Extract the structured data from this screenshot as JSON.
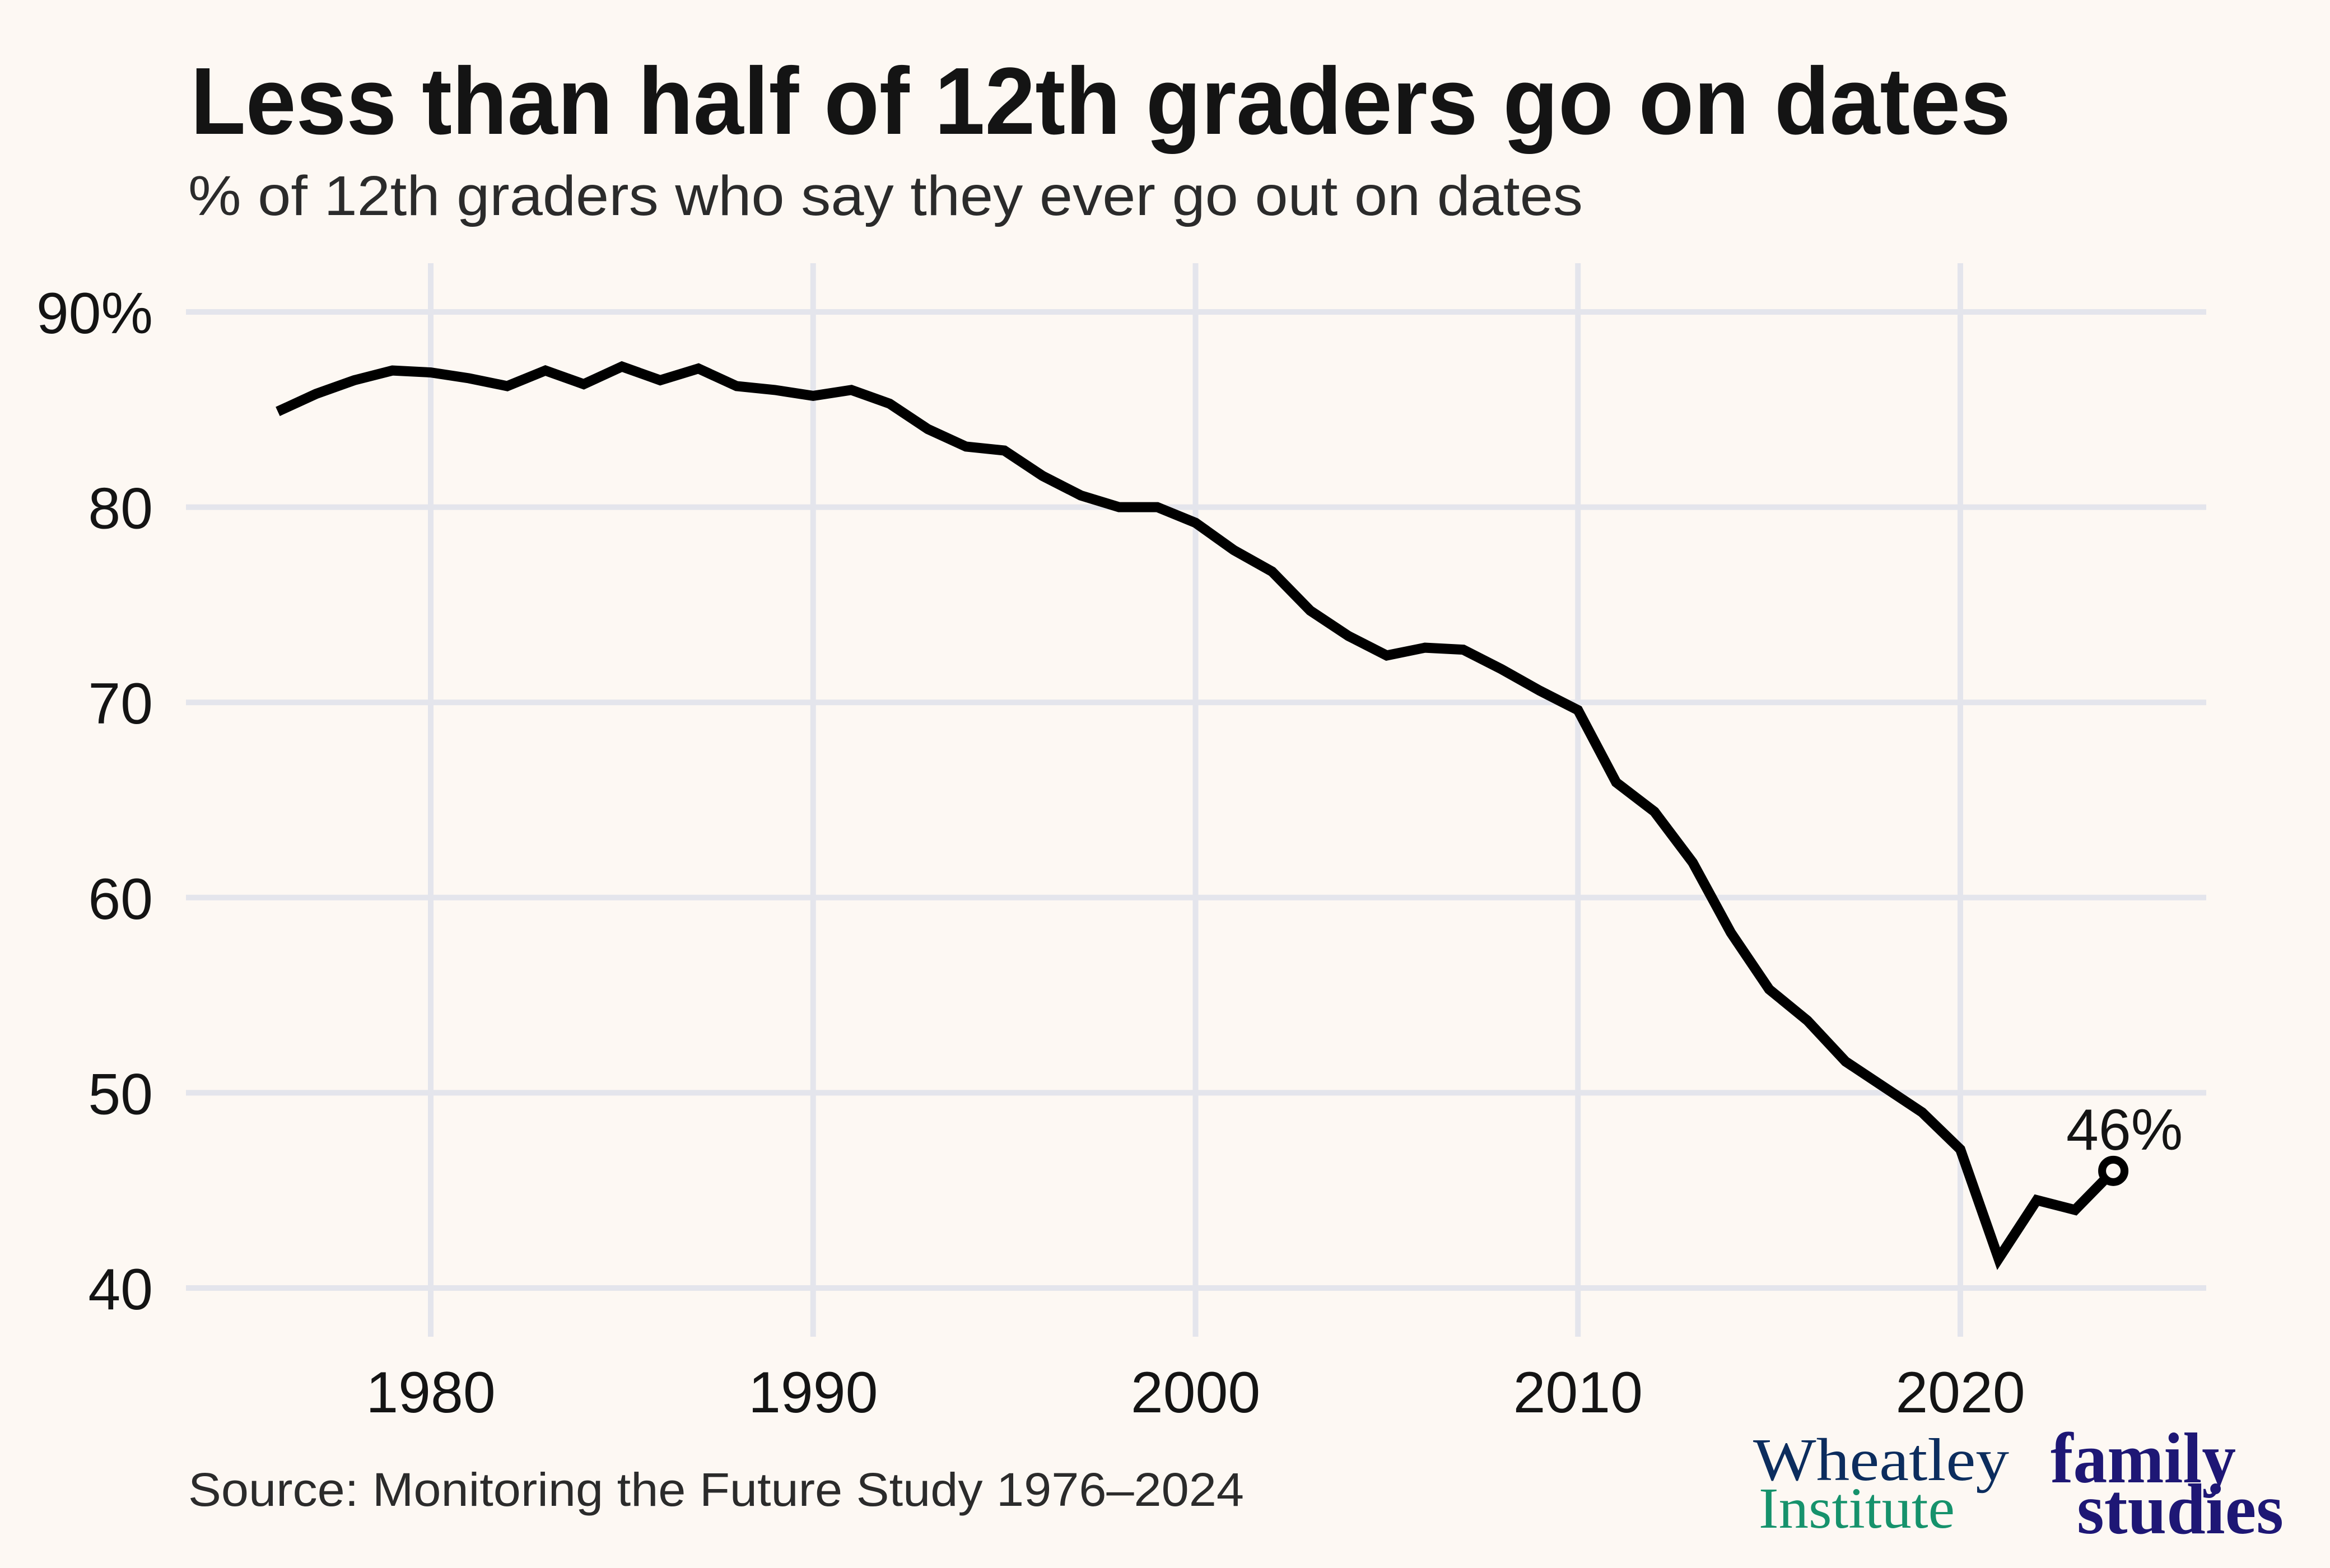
{
  "chart_data": {
    "type": "line",
    "title": "Less than half of 12th graders go on dates",
    "subtitle": "% of 12th graders who say they ever go out on dates",
    "xlabel": "",
    "ylabel": "",
    "xlim": [
      1976,
      2024
    ],
    "ylim": [
      40,
      90
    ],
    "grid": true,
    "x_ticks": [
      1980,
      1990,
      2000,
      2010,
      2020
    ],
    "x_tick_labels": [
      "1980",
      "1990",
      "2000",
      "2010",
      "2020"
    ],
    "y_ticks": [
      40,
      50,
      60,
      70,
      80,
      90
    ],
    "y_tick_labels": [
      "40",
      "50",
      "60",
      "70",
      "80",
      "90%"
    ],
    "series": [
      {
        "name": "Ever go out on dates",
        "color": "#000000",
        "x": [
          1976,
          1977,
          1978,
          1979,
          1980,
          1981,
          1982,
          1983,
          1984,
          1985,
          1986,
          1987,
          1988,
          1989,
          1990,
          1991,
          1992,
          1993,
          1994,
          1995,
          1996,
          1997,
          1998,
          1999,
          2000,
          2001,
          2002,
          2003,
          2004,
          2005,
          2006,
          2007,
          2008,
          2009,
          2010,
          2011,
          2012,
          2013,
          2014,
          2015,
          2016,
          2017,
          2018,
          2019,
          2020,
          2021,
          2022,
          2023,
          2024
        ],
        "values": [
          84.9,
          85.8,
          86.5,
          87.0,
          86.9,
          86.6,
          86.2,
          87.0,
          86.3,
          87.2,
          86.5,
          87.1,
          86.2,
          86.0,
          85.7,
          86.0,
          85.3,
          84.0,
          83.1,
          82.9,
          81.6,
          80.6,
          80.0,
          80.0,
          79.2,
          77.8,
          76.7,
          74.7,
          73.4,
          72.4,
          72.8,
          72.7,
          71.7,
          70.6,
          69.6,
          65.9,
          64.4,
          61.8,
          58.2,
          55.3,
          53.7,
          51.6,
          50.3,
          49.0,
          47.1,
          41.5,
          44.5,
          44.0,
          46.0
        ]
      }
    ],
    "annotations": [
      {
        "x": 2024,
        "y": 46.0,
        "text": "46%",
        "marker": "open-circle"
      }
    ],
    "source": "Source: Monitoring the Future Study 1976–2024"
  },
  "branding": {
    "wheatley_line1": "Wheatley",
    "wheatley_line2": "Institute",
    "family_line1": "family",
    "family_line2": "studies",
    "colors": {
      "wheatley": "#0c2d5e",
      "institute": "#16926c",
      "family_studies": "#1e1775"
    }
  }
}
